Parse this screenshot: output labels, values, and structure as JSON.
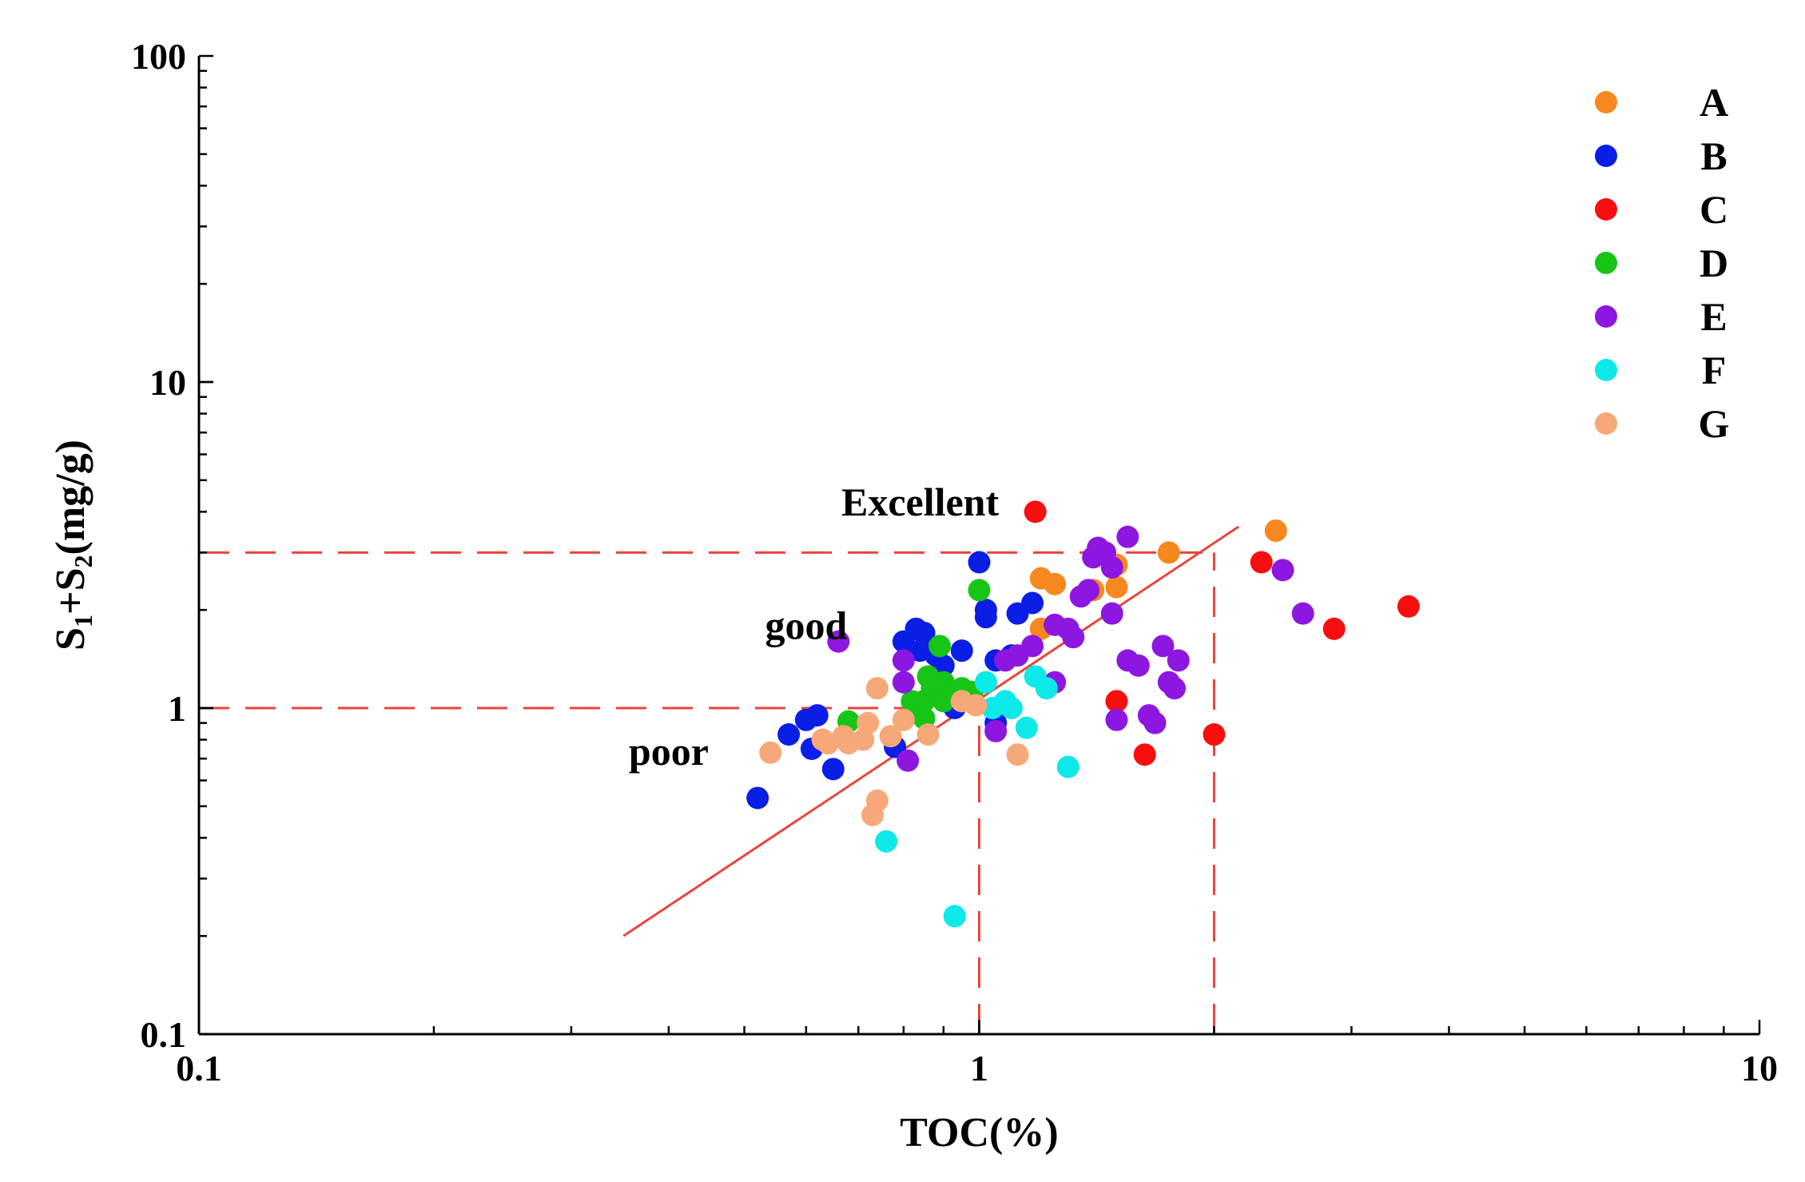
{
  "chart_data": {
    "type": "scatter",
    "title": "",
    "xlabel": "TOC(%)",
    "ylabel": {
      "base": "S",
      "sub1": "1",
      "mid": "+S",
      "sub2": "2",
      "tail": "(mg/g)"
    },
    "xscale": "log",
    "yscale": "log",
    "xlim": [
      0.1,
      10
    ],
    "ylim": [
      0.1,
      100
    ],
    "xticks": [
      {
        "value": 0.1,
        "label": "0.1"
      },
      {
        "value": 1,
        "label": "1"
      },
      {
        "value": 10,
        "label": "10"
      }
    ],
    "yticks": [
      {
        "value": 0.1,
        "label": "0.1"
      },
      {
        "value": 1,
        "label": "1"
      },
      {
        "value": 10,
        "label": "10"
      },
      {
        "value": 100,
        "label": "100"
      }
    ],
    "grid": false,
    "legend_position": "top-right",
    "annotations": [
      {
        "text": "Excellent",
        "x": 0.84,
        "y": 3.9
      },
      {
        "text": "good",
        "x": 0.6,
        "y": 1.63
      },
      {
        "text": "poor",
        "x": 0.4,
        "y": 0.67
      }
    ],
    "reference_lines": {
      "horizontal": [
        {
          "y": 3,
          "x_from": 0.1,
          "x_to": 2
        },
        {
          "y": 1,
          "x_from": 0.1,
          "x_to": 1
        }
      ],
      "vertical": [
        {
          "x": 1,
          "y_from": 0.1,
          "y_to": 1
        },
        {
          "x": 2,
          "y_from": 0.1,
          "y_to": 3
        }
      ],
      "trend": {
        "from": [
          0.35,
          0.2
        ],
        "to": [
          2.15,
          3.6
        ]
      }
    },
    "series": [
      {
        "name": "A",
        "color": "#f7871f",
        "points": [
          [
            1.2,
            2.5
          ],
          [
            1.25,
            2.4
          ],
          [
            1.5,
            2.75
          ],
          [
            1.5,
            2.35
          ],
          [
            1.75,
            3.0
          ],
          [
            2.4,
            3.5
          ],
          [
            1.2,
            1.75
          ],
          [
            1.4,
            2.3
          ]
        ]
      },
      {
        "name": "B",
        "color": "#0a1ee6",
        "points": [
          [
            0.52,
            0.53
          ],
          [
            0.57,
            0.83
          ],
          [
            0.6,
            0.92
          ],
          [
            0.62,
            0.95
          ],
          [
            0.61,
            0.75
          ],
          [
            0.65,
            0.65
          ],
          [
            0.78,
            0.76
          ],
          [
            0.8,
            1.6
          ],
          [
            0.83,
            1.75
          ],
          [
            0.85,
            1.7
          ],
          [
            0.84,
            1.5
          ],
          [
            0.88,
            1.45
          ],
          [
            0.9,
            1.35
          ],
          [
            0.95,
            1.5
          ],
          [
            1.0,
            2.8
          ],
          [
            1.02,
            2.0
          ],
          [
            1.02,
            1.9
          ],
          [
            1.05,
            1.4
          ],
          [
            1.1,
            1.45
          ],
          [
            1.12,
            1.95
          ],
          [
            1.17,
            2.1
          ],
          [
            1.05,
            0.9
          ],
          [
            0.93,
            1.0
          ]
        ]
      },
      {
        "name": "C",
        "color": "#f70f0f",
        "points": [
          [
            1.18,
            4.0
          ],
          [
            1.5,
            1.05
          ],
          [
            1.63,
            0.72
          ],
          [
            2.0,
            0.83
          ],
          [
            2.3,
            2.8
          ],
          [
            2.85,
            1.75
          ],
          [
            3.55,
            2.05
          ]
        ]
      },
      {
        "name": "D",
        "color": "#16c515",
        "points": [
          [
            0.68,
            0.91
          ],
          [
            0.82,
            1.05
          ],
          [
            0.83,
            1.0
          ],
          [
            0.85,
            0.93
          ],
          [
            0.86,
            1.25
          ],
          [
            0.87,
            1.15
          ],
          [
            0.88,
            1.1
          ],
          [
            0.89,
            1.55
          ],
          [
            0.9,
            1.05
          ],
          [
            0.9,
            1.2
          ],
          [
            0.92,
            1.1
          ],
          [
            0.95,
            1.15
          ],
          [
            1.0,
            2.3
          ],
          [
            0.98,
            1.12
          ],
          [
            0.85,
            1.05
          ]
        ]
      },
      {
        "name": "E",
        "color": "#8d16e0",
        "points": [
          [
            0.66,
            1.6
          ],
          [
            0.8,
            1.4
          ],
          [
            0.8,
            1.2
          ],
          [
            0.81,
            0.69
          ],
          [
            1.05,
            0.85
          ],
          [
            1.08,
            1.4
          ],
          [
            1.12,
            1.45
          ],
          [
            1.17,
            1.55
          ],
          [
            1.25,
            1.8
          ],
          [
            1.3,
            1.75
          ],
          [
            1.35,
            2.2
          ],
          [
            1.38,
            2.3
          ],
          [
            1.32,
            1.65
          ],
          [
            1.4,
            2.9
          ],
          [
            1.42,
            3.1
          ],
          [
            1.45,
            3.0
          ],
          [
            1.48,
            1.95
          ],
          [
            1.48,
            2.7
          ],
          [
            1.55,
            3.35
          ],
          [
            1.55,
            1.4
          ],
          [
            1.6,
            1.35
          ],
          [
            1.5,
            0.92
          ],
          [
            1.65,
            0.95
          ],
          [
            1.68,
            0.9
          ],
          [
            1.72,
            1.55
          ],
          [
            1.75,
            1.2
          ],
          [
            1.78,
            1.15
          ],
          [
            1.8,
            1.4
          ],
          [
            1.25,
            1.2
          ],
          [
            2.45,
            2.65
          ],
          [
            2.6,
            1.95
          ]
        ]
      },
      {
        "name": "F",
        "color": "#0de8e8",
        "points": [
          [
            0.76,
            0.39
          ],
          [
            0.93,
            0.23
          ],
          [
            1.04,
            1.0
          ],
          [
            1.08,
            1.05
          ],
          [
            1.1,
            1.0
          ],
          [
            1.15,
            0.87
          ],
          [
            1.18,
            1.25
          ],
          [
            1.22,
            1.15
          ],
          [
            1.3,
            0.66
          ],
          [
            1.02,
            1.2
          ]
        ]
      },
      {
        "name": "G",
        "color": "#f7a878",
        "points": [
          [
            0.54,
            0.73
          ],
          [
            0.63,
            0.8
          ],
          [
            0.64,
            0.78
          ],
          [
            0.67,
            0.82
          ],
          [
            0.68,
            0.78
          ],
          [
            0.71,
            0.8
          ],
          [
            0.72,
            0.9
          ],
          [
            0.73,
            0.47
          ],
          [
            0.74,
            0.52
          ],
          [
            0.74,
            1.15
          ],
          [
            0.77,
            0.82
          ],
          [
            0.8,
            0.92
          ],
          [
            0.86,
            0.83
          ],
          [
            1.12,
            0.72
          ],
          [
            0.99,
            1.02
          ],
          [
            0.95,
            1.05
          ]
        ]
      }
    ]
  }
}
